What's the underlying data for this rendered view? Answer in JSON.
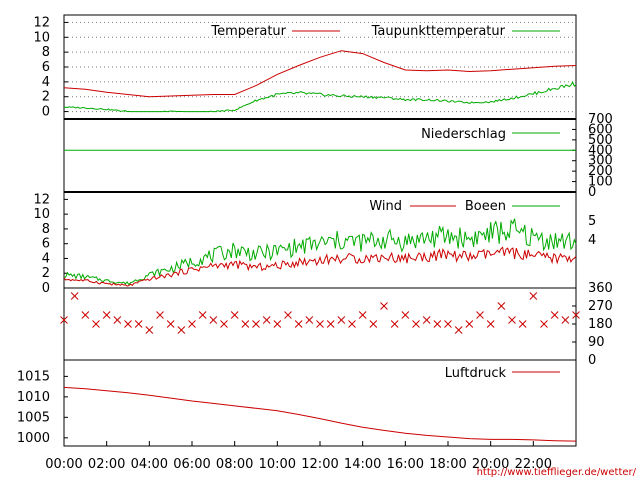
{
  "legend": {
    "temperature": "Temperatur",
    "dewpoint": "Taupunkttemperatur",
    "precipitation": "Niederschlag",
    "wind": "Wind",
    "gusts": "Boeen",
    "pressure": "Luftdruck"
  },
  "credit": "http://www.tiefflieger.de/wetter/",
  "colors": {
    "temperature": "#cc0000",
    "dewpoint": "#00aa00",
    "precipitation": "#00aa00",
    "wind": "#cc0000",
    "gusts": "#00aa00",
    "direction": "#cc0000",
    "pressure": "#cc0000"
  },
  "chart_data": [
    {
      "type": "line",
      "xlabel": "",
      "ylabel": "",
      "x_ticks": [
        "00:00",
        "02:00",
        "04:00",
        "06:00",
        "08:00",
        "10:00",
        "12:00",
        "14:00",
        "16:00",
        "18:00",
        "20:00",
        "22:00"
      ],
      "ylim": [
        -1,
        13
      ],
      "y_ticks": [
        0,
        2,
        4,
        6,
        8,
        10,
        12
      ],
      "grid": true,
      "legend_position": "top-right",
      "series": [
        {
          "name": "Temperatur",
          "x": [
            0,
            1,
            2,
            3,
            4,
            5,
            6,
            7,
            8,
            9,
            10,
            11,
            12,
            13,
            14,
            15,
            16,
            17,
            18,
            19,
            20,
            21,
            22,
            23,
            24
          ],
          "values": [
            3.2,
            3.0,
            2.6,
            2.3,
            2.0,
            2.1,
            2.2,
            2.3,
            2.3,
            3.5,
            5.0,
            6.2,
            7.3,
            8.2,
            7.8,
            6.6,
            5.6,
            5.5,
            5.6,
            5.4,
            5.5,
            5.7,
            5.9,
            6.1,
            6.2
          ]
        },
        {
          "name": "Taupunkttemperatur",
          "x": [
            0,
            1,
            2,
            3,
            4,
            5,
            6,
            7,
            8,
            9,
            10,
            11,
            12,
            13,
            14,
            15,
            16,
            17,
            18,
            19,
            20,
            21,
            22,
            23,
            24
          ],
          "values": [
            0.6,
            0.5,
            0.3,
            0.0,
            -0.1,
            0.0,
            -0.1,
            0.0,
            0.2,
            1.5,
            2.3,
            2.5,
            2.3,
            2.1,
            2.0,
            1.9,
            1.6,
            1.6,
            1.4,
            1.2,
            1.3,
            1.8,
            2.4,
            3.1,
            3.8
          ]
        }
      ]
    },
    {
      "type": "line",
      "xlabel": "",
      "ylabel": "",
      "ylim": [
        0,
        700
      ],
      "y_ticks": [
        0,
        100,
        200,
        300,
        400,
        500,
        600,
        700
      ],
      "grid": false,
      "legend_position": "top-right",
      "series": [
        {
          "name": "Niederschlag",
          "x": [
            0,
            24
          ],
          "values": [
            400,
            400
          ]
        }
      ]
    },
    {
      "type": "line",
      "xlabel": "",
      "ylabel": "",
      "ylim": [
        0,
        13
      ],
      "y_ticks": [
        0,
        2,
        4,
        6,
        8,
        10,
        12
      ],
      "y2_ticks": [
        "4",
        "5"
      ],
      "grid": false,
      "legend_position": "top-right",
      "series": [
        {
          "name": "Wind",
          "x": [
            0,
            1,
            2,
            3,
            4,
            5,
            6,
            7,
            8,
            9,
            10,
            11,
            12,
            13,
            14,
            15,
            16,
            17,
            18,
            19,
            20,
            21,
            22,
            23,
            24
          ],
          "values": [
            1.2,
            1.0,
            0.6,
            0.3,
            1.2,
            1.8,
            2.5,
            3.0,
            3.2,
            2.8,
            3.0,
            3.5,
            3.8,
            4.0,
            4.0,
            4.2,
            4.0,
            4.3,
            4.5,
            4.2,
            4.6,
            4.8,
            4.3,
            4.0,
            4.2
          ]
        },
        {
          "name": "Boeen",
          "x": [
            0,
            1,
            2,
            3,
            4,
            5,
            6,
            7,
            8,
            9,
            10,
            11,
            12,
            13,
            14,
            15,
            16,
            17,
            18,
            19,
            20,
            21,
            22,
            23,
            24
          ],
          "values": [
            1.8,
            1.5,
            1.0,
            0.6,
            1.8,
            2.6,
            3.6,
            4.4,
            5.2,
            4.6,
            5.0,
            5.6,
            6.0,
            6.4,
            6.2,
            6.6,
            6.3,
            6.8,
            7.0,
            6.7,
            7.4,
            7.8,
            6.8,
            6.4,
            6.2
          ]
        }
      ]
    },
    {
      "type": "scatter",
      "xlabel": "",
      "ylabel": "",
      "ylim": [
        0,
        360
      ],
      "y_ticks": [
        0,
        90,
        180,
        270,
        360
      ],
      "grid": false,
      "marker": "x",
      "series": [
        {
          "x": [
            0,
            0.5,
            1,
            1.5,
            2,
            2.5,
            3,
            3.5,
            4,
            4.5,
            5,
            5.5,
            6,
            6.5,
            7,
            7.5,
            8,
            8.5,
            9,
            9.5,
            10,
            10.5,
            11,
            11.5,
            12,
            12.5,
            13,
            13.5,
            14,
            14.5,
            15,
            15.5,
            16,
            16.5,
            17,
            17.5,
            18,
            18.5,
            19,
            19.5,
            20,
            20.5,
            21,
            21.5,
            22,
            22.5,
            23,
            23.5,
            24
          ],
          "values": [
            200,
            320,
            225,
            180,
            225,
            200,
            180,
            180,
            150,
            225,
            180,
            150,
            180,
            225,
            200,
            180,
            225,
            180,
            180,
            200,
            180,
            225,
            180,
            200,
            180,
            180,
            200,
            180,
            225,
            180,
            270,
            180,
            225,
            180,
            200,
            180,
            180,
            150,
            180,
            225,
            180,
            270,
            200,
            180,
            320,
            180,
            225,
            200,
            225
          ]
        }
      ]
    },
    {
      "type": "line",
      "xlabel": "",
      "ylabel": "",
      "ylim": [
        998,
        1019
      ],
      "y_ticks": [
        1000,
        1005,
        1010,
        1015
      ],
      "grid": false,
      "legend_position": "top-right",
      "series": [
        {
          "name": "Luftdruck",
          "x": [
            0,
            1,
            2,
            3,
            4,
            5,
            6,
            7,
            8,
            9,
            10,
            11,
            12,
            13,
            14,
            15,
            16,
            17,
            18,
            19,
            20,
            21,
            22,
            23,
            24
          ],
          "values": [
            1012.3,
            1012.0,
            1011.5,
            1011.0,
            1010.4,
            1009.7,
            1009.0,
            1008.4,
            1007.8,
            1007.2,
            1006.6,
            1005.7,
            1004.7,
            1003.6,
            1002.6,
            1001.8,
            1001.1,
            1000.6,
            1000.2,
            999.8,
            999.6,
            999.6,
            999.5,
            999.3,
            999.2
          ]
        }
      ]
    }
  ]
}
